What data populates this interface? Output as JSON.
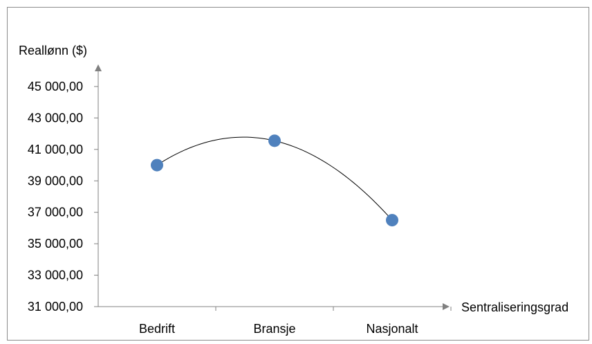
{
  "chart_data": {
    "type": "scatter",
    "title": "",
    "xlabel": "Sentraliseringsgrad",
    "ylabel": "Reallønn ($)",
    "categories": [
      "Bedrift",
      "Bransje",
      "Nasjonalt"
    ],
    "values": [
      40000,
      41550,
      36500
    ],
    "y_ticks": [
      "31 000,00",
      "33 000,00",
      "35 000,00",
      "37 000,00",
      "39 000,00",
      "41 000,00",
      "43 000,00",
      "45 000,00"
    ],
    "ylim": [
      31000,
      45000
    ],
    "trendline": "quadratic",
    "marker_color": "#4f81bd",
    "grid": false,
    "legend": "none"
  }
}
